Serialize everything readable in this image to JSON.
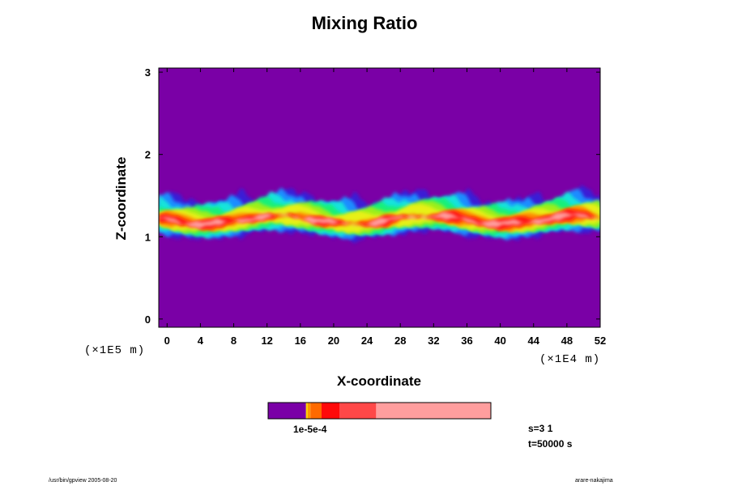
{
  "chart_data": {
    "type": "heatmap",
    "title": "Mixing Ratio",
    "xlabel": "X-coordinate",
    "ylabel": "Z-coordinate",
    "x_unit_label": "(×1E4 m)",
    "y_unit_label": "(×1E5 m)",
    "x_ticks": [
      "0",
      "4",
      "8",
      "12",
      "16",
      "20",
      "24",
      "28",
      "32",
      "36",
      "40",
      "44",
      "48",
      "52"
    ],
    "y_ticks": [
      "0",
      "1",
      "2",
      "3"
    ],
    "xlim": [
      -1,
      52
    ],
    "ylim": [
      -0.1,
      3.05
    ],
    "colorbar_label": "1e-5e-4",
    "colorbar_colors": [
      "#7a00a6",
      "#ffd000",
      "#ff9900",
      "#ff6a00",
      "#ff0a0a",
      "#ff4848",
      "#ff9e9e"
    ],
    "layer": {
      "base_z": 1.2,
      "thickness_z": 0.6,
      "background_color": "#7a00a6",
      "band_colors": [
        "#3a1fd6",
        "#1a8cff",
        "#16e4dc",
        "#12f07a",
        "#9aef1e",
        "#e8f014",
        "#ff8a00",
        "#ff1010",
        "#ff9e9e"
      ],
      "hot_spots_x": [
        1,
        3,
        5,
        10,
        18,
        25.5,
        34,
        38,
        41,
        44,
        47,
        49
      ]
    },
    "info_s": "s=3 1",
    "info_t": "t=50000 s",
    "footer_left": "/usr/bin/gpview 2005-08-20",
    "footer_right": "arare-nakajima"
  }
}
